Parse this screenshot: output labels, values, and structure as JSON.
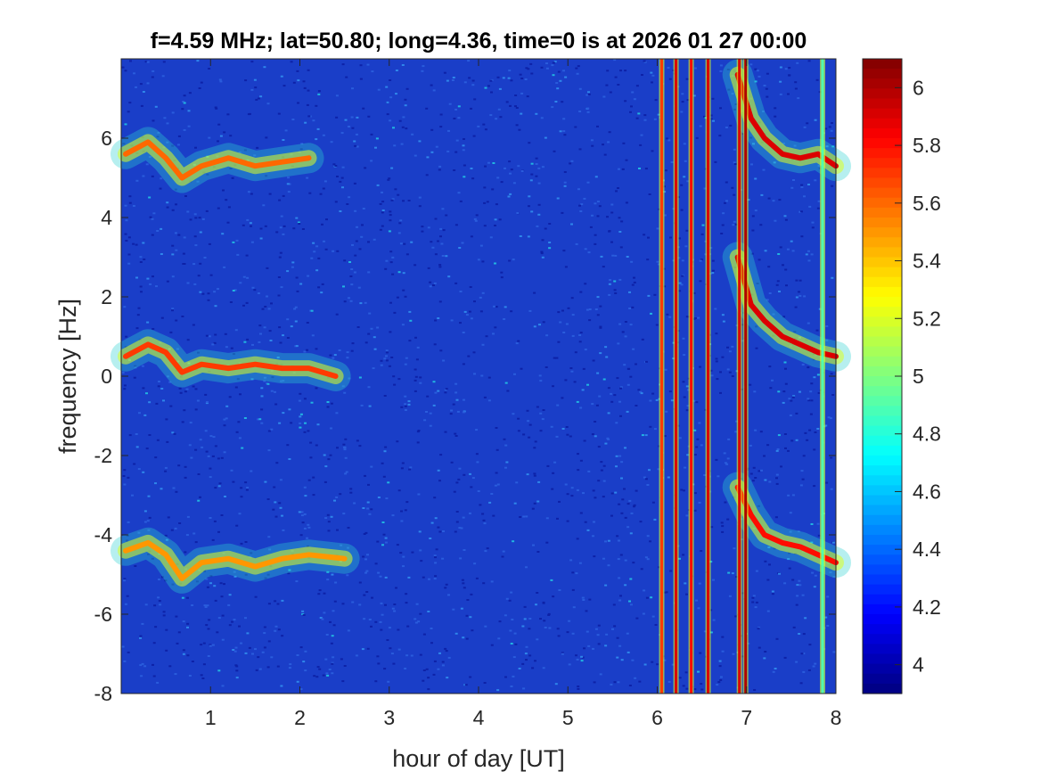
{
  "chart_data": {
    "type": "heatmap",
    "title": "f=4.59 MHz;  lat=50.80; long=4.36, time=0 is at 2026 01 27 00:00",
    "xlabel": "hour of day [UT]",
    "ylabel": "frequency [Hz]",
    "xlim": [
      0,
      8
    ],
    "ylim": [
      -8,
      8
    ],
    "xticks": [
      "1",
      "2",
      "3",
      "4",
      "5",
      "6",
      "7",
      "8"
    ],
    "yticks": [
      "-8",
      "-6",
      "-4",
      "-2",
      "0",
      "2",
      "4",
      "6"
    ],
    "colorbar": {
      "colormap": "jet",
      "clim": [
        3.9,
        6.1
      ],
      "ticks": [
        "4",
        "4.2",
        "4.4",
        "4.6",
        "4.8",
        "5",
        "5.2",
        "5.4",
        "5.6",
        "5.8",
        "6"
      ]
    },
    "background_level": 4.2,
    "traces": [
      {
        "level": 5.6,
        "points": [
          [
            0.05,
            5.6
          ],
          [
            0.3,
            5.9
          ],
          [
            0.5,
            5.5
          ],
          [
            0.68,
            5.0
          ],
          [
            0.9,
            5.3
          ],
          [
            1.2,
            5.5
          ],
          [
            1.5,
            5.3
          ],
          [
            1.8,
            5.4
          ],
          [
            2.1,
            5.5
          ]
        ]
      },
      {
        "level": 5.7,
        "points": [
          [
            0.05,
            0.5
          ],
          [
            0.3,
            0.8
          ],
          [
            0.5,
            0.6
          ],
          [
            0.68,
            0.1
          ],
          [
            0.9,
            0.3
          ],
          [
            1.2,
            0.2
          ],
          [
            1.5,
            0.3
          ],
          [
            1.8,
            0.2
          ],
          [
            2.1,
            0.2
          ],
          [
            2.4,
            0.0
          ]
        ]
      },
      {
        "level": 5.5,
        "points": [
          [
            0.05,
            -4.4
          ],
          [
            0.3,
            -4.2
          ],
          [
            0.5,
            -4.5
          ],
          [
            0.68,
            -5.1
          ],
          [
            0.9,
            -4.7
          ],
          [
            1.2,
            -4.6
          ],
          [
            1.5,
            -4.8
          ],
          [
            1.8,
            -4.6
          ],
          [
            2.1,
            -4.5
          ],
          [
            2.5,
            -4.6
          ]
        ]
      },
      {
        "level": 5.9,
        "points": [
          [
            6.9,
            7.6
          ],
          [
            7.05,
            6.5
          ],
          [
            7.2,
            6.0
          ],
          [
            7.4,
            5.6
          ],
          [
            7.6,
            5.5
          ],
          [
            7.8,
            5.6
          ],
          [
            8.0,
            5.3
          ]
        ]
      },
      {
        "level": 5.9,
        "points": [
          [
            6.9,
            3.0
          ],
          [
            7.05,
            1.8
          ],
          [
            7.2,
            1.4
          ],
          [
            7.4,
            1.0
          ],
          [
            7.6,
            0.8
          ],
          [
            7.8,
            0.6
          ],
          [
            8.0,
            0.5
          ]
        ]
      },
      {
        "level": 5.8,
        "points": [
          [
            6.9,
            -2.8
          ],
          [
            7.05,
            -3.5
          ],
          [
            7.2,
            -4.0
          ],
          [
            7.4,
            -4.2
          ],
          [
            7.6,
            -4.3
          ],
          [
            7.8,
            -4.5
          ],
          [
            8.0,
            -4.7
          ]
        ]
      }
    ],
    "vertical_lines": [
      {
        "x": 6.05,
        "level": 5.7
      },
      {
        "x": 6.21,
        "level": 5.9
      },
      {
        "x": 6.38,
        "level": 5.8
      },
      {
        "x": 6.57,
        "level": 5.9
      },
      {
        "x": 6.92,
        "level": 5.9
      },
      {
        "x": 6.99,
        "level": 6.0
      },
      {
        "x": 7.85,
        "level": 4.9
      }
    ]
  }
}
